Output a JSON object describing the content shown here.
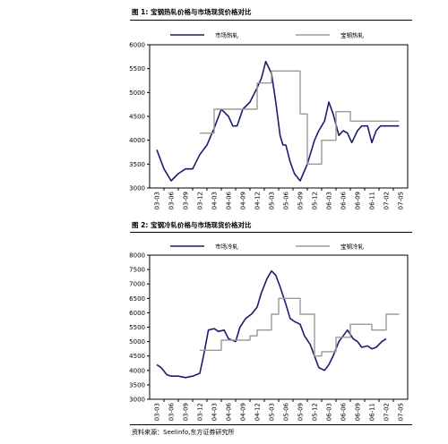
{
  "figures": [
    {
      "title": "图 1:  宝钢热轧价格与市场现货价格对比"
    },
    {
      "title": "图 2:  宝钢冷轧价格与市场现货价格对比"
    }
  ],
  "source": "资料来源：Seelinfo,东方证券研究所",
  "colors": {
    "series_market": "#1c1c6e",
    "series_baosteel": "#9a9a9a"
  },
  "chart_data": [
    {
      "type": "line",
      "title": "",
      "x_tick_labels": [
        "03-03",
        "03-06",
        "03-09",
        "03-12",
        "04-03",
        "04-06",
        "04-09",
        "04-12",
        "05-03",
        "05-06",
        "05-09",
        "05-12",
        "06-03",
        "06-06",
        "06-09",
        "06-11",
        "07-02",
        "07-05"
      ],
      "ylim": [
        3000,
        6000
      ],
      "yticks": [
        3000,
        3500,
        4000,
        4500,
        5000,
        5500,
        6000
      ],
      "grid": false,
      "legend": "top",
      "series": [
        {
          "name": "市场热轧",
          "x": [
            0,
            0.5,
            1,
            1.5,
            2,
            2.5,
            3,
            3.5,
            4,
            4.5,
            5,
            5.3,
            5.6,
            6,
            6.5,
            7,
            7.3,
            7.6,
            8,
            8.3,
            8.6,
            8.8,
            9,
            9.3,
            9.6,
            10,
            10.5,
            11,
            11.3,
            11.7,
            12,
            12.3,
            12.7,
            13,
            13.3,
            13.6,
            14,
            14.3,
            14.7,
            15,
            15.3,
            15.6,
            16,
            16.5,
            16.9
          ],
          "values": [
            3800,
            3400,
            3150,
            3300,
            3400,
            3400,
            3700,
            3900,
            4250,
            4650,
            4500,
            4300,
            4300,
            4650,
            4800,
            5100,
            5300,
            5650,
            5400,
            4800,
            4100,
            3900,
            3900,
            3550,
            3300,
            3150,
            3500,
            4000,
            4200,
            4400,
            4800,
            4550,
            4100,
            4200,
            4150,
            3950,
            4200,
            4300,
            4300,
            3950,
            4200,
            4300,
            4300,
            4300,
            4300
          ]
        },
        {
          "name": "宝钢热轧",
          "x": [
            3,
            3.5,
            3.5,
            4,
            4,
            4.5,
            4.5,
            5,
            5,
            5.5,
            5.5,
            6,
            6,
            6.5,
            6.5,
            7,
            7,
            7.5,
            7.5,
            8,
            8,
            8.5,
            8.5,
            10,
            10,
            10.5,
            10.5,
            11.5,
            11.5,
            12.5,
            12.5,
            13,
            13,
            13.5,
            13.5,
            14,
            14,
            14.5,
            14.5,
            15,
            15,
            16.9
          ],
          "values": [
            4150,
            4150,
            4150,
            4150,
            4650,
            4650,
            4650,
            4650,
            4650,
            4650,
            4650,
            4650,
            4650,
            4650,
            4650,
            4650,
            5200,
            5200,
            5200,
            5200,
            5450,
            5450,
            5450,
            5450,
            4550,
            4550,
            3500,
            3500,
            4000,
            4000,
            4600,
            4600,
            4600,
            4600,
            4400,
            4400,
            4400,
            4400,
            4400,
            4400,
            4400,
            4400
          ]
        }
      ]
    },
    {
      "type": "line",
      "title": "",
      "x_tick_labels": [
        "03-03",
        "03-06",
        "03-09",
        "03-12",
        "04-03",
        "04-06",
        "04-09",
        "04-12",
        "05-03",
        "05-06",
        "05-09",
        "05-12",
        "06-03",
        "06-06",
        "06-09",
        "06-11",
        "07-02",
        "07-05"
      ],
      "ylim": [
        3000,
        8000
      ],
      "yticks": [
        3000,
        3500,
        4000,
        4500,
        5000,
        5500,
        6000,
        6500,
        7000,
        7500,
        8000
      ],
      "grid": false,
      "legend": "top",
      "series": [
        {
          "name": "市场冷轧",
          "x": [
            0,
            0.3,
            0.7,
            1,
            1.5,
            2,
            2.5,
            3,
            3.3,
            3.6,
            4,
            4.3,
            4.7,
            5,
            5.5,
            5.8,
            6.2,
            6.6,
            7,
            7.3,
            7.7,
            8,
            8.3,
            8.6,
            9,
            9.3,
            9.6,
            10,
            10.3,
            10.7,
            11,
            11.3,
            11.7,
            12,
            12.3,
            12.7,
            13,
            13.3,
            13.7,
            14,
            14.3,
            14.7,
            15,
            15.3,
            15.7,
            16
          ],
          "values": [
            4200,
            4100,
            3850,
            3800,
            3800,
            3750,
            3800,
            3900,
            4600,
            5400,
            5450,
            5350,
            5400,
            5100,
            5000,
            5500,
            5800,
            5950,
            6200,
            6700,
            7200,
            7450,
            7300,
            6900,
            6300,
            5800,
            5700,
            5600,
            5200,
            4900,
            4500,
            4100,
            4000,
            4200,
            4500,
            5000,
            5200,
            5400,
            5100,
            5000,
            4800,
            4850,
            4750,
            4800,
            5000,
            5100
          ]
        },
        {
          "name": "宝钢冷轧",
          "x": [
            3,
            3.5,
            3.5,
            4.5,
            4.5,
            5.5,
            5.5,
            6.5,
            6.5,
            7,
            7,
            7.5,
            7.5,
            8,
            8,
            8.5,
            8.5,
            9.5,
            9.5,
            10,
            10,
            11,
            11,
            11.5,
            11.5,
            12.5,
            12.5,
            13,
            13,
            13.5,
            13.5,
            14,
            14,
            14.5,
            14.5,
            15,
            15,
            15.5,
            15.5,
            16,
            16,
            16.9
          ],
          "values": [
            4700,
            4700,
            4700,
            4700,
            5050,
            5050,
            5050,
            5050,
            5200,
            5200,
            5400,
            5400,
            5400,
            5400,
            5950,
            5950,
            6500,
            6500,
            6500,
            6500,
            5950,
            5950,
            4500,
            4500,
            4650,
            4650,
            5150,
            5150,
            5150,
            5150,
            5600,
            5600,
            5600,
            5600,
            5600,
            5600,
            5400,
            5400,
            5400,
            5400,
            5950,
            5950
          ]
        }
      ]
    }
  ]
}
